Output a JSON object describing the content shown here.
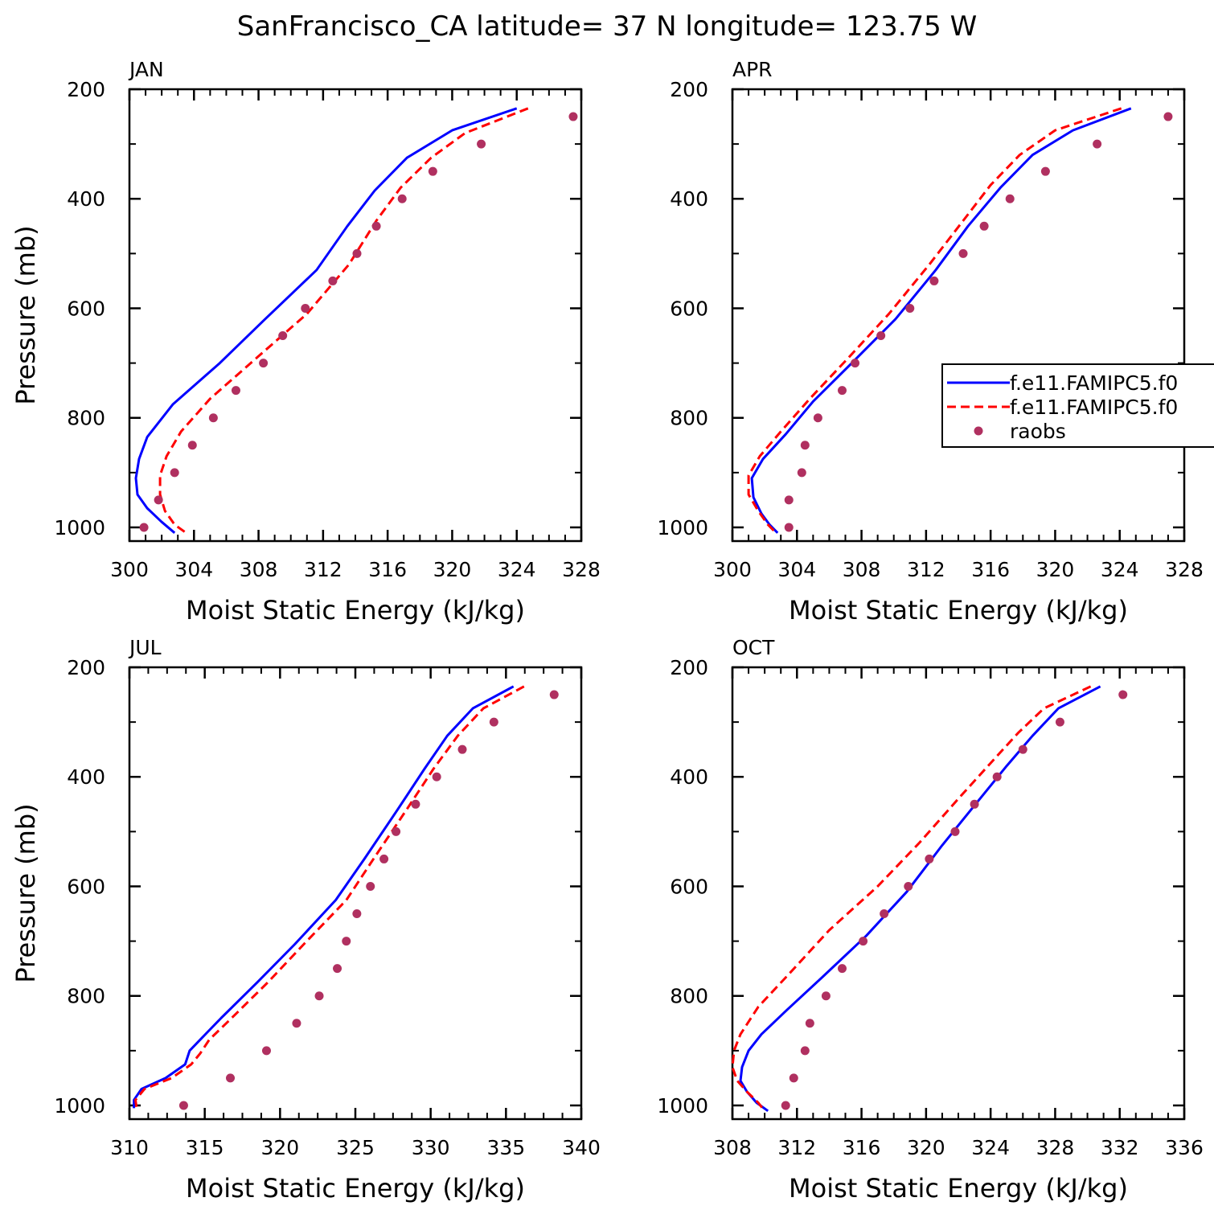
{
  "title": "SanFrancisco_CA  latitude= 37 N longitude= 123.75 W",
  "colors": {
    "model1": "#0000ff",
    "model2": "#ff0000",
    "raobs": "#b03060"
  },
  "legend": {
    "items": [
      {
        "label": "f.e11.FAMIPC5.f0",
        "style": "solid",
        "color": "#0000ff"
      },
      {
        "label": "f.e11.FAMIPC5.f0",
        "style": "dashed",
        "color": "#ff0000"
      },
      {
        "label": "raobs",
        "style": "dot",
        "color": "#b03060"
      }
    ]
  },
  "chart_data": [
    {
      "type": "line",
      "panel": "JAN",
      "title": "JAN",
      "xlabel": "Moist Static Energy (kJ/kg)",
      "ylabel": "Pressure (mb)",
      "xlim": [
        300,
        328
      ],
      "ylim": [
        1025,
        200
      ],
      "xticks": [
        300,
        304,
        308,
        312,
        316,
        320,
        324,
        328
      ],
      "yticks": [
        200,
        400,
        600,
        800,
        1000
      ],
      "series": [
        {
          "name": "f.e11.FAMIPC5.f0",
          "style": "solid",
          "color": "#0000ff",
          "x": [
            324.0,
            320.0,
            317.2,
            315.2,
            313.5,
            311.6,
            308.4,
            305.6,
            302.7,
            301.1,
            300.6,
            300.4,
            300.5,
            301.1,
            302.0,
            302.8
          ],
          "y": [
            235,
            275,
            325,
            385,
            450,
            530,
            620,
            700,
            775,
            835,
            875,
            910,
            940,
            965,
            990,
            1010
          ]
        },
        {
          "name": "f.e11.FAMIPC5.f0",
          "style": "dashed",
          "color": "#ff0000",
          "x": [
            324.7,
            320.8,
            318.7,
            316.8,
            315.3,
            313.6,
            311.0,
            307.9,
            305.0,
            303.2,
            302.3,
            301.9,
            301.9,
            302.2,
            302.8,
            303.6
          ],
          "y": [
            235,
            280,
            325,
            380,
            440,
            520,
            610,
            690,
            765,
            825,
            870,
            905,
            940,
            970,
            995,
            1012
          ]
        },
        {
          "name": "raobs",
          "style": "dot",
          "color": "#b03060",
          "x": [
            327.5,
            321.8,
            318.8,
            316.9,
            315.3,
            314.1,
            312.6,
            310.9,
            309.5,
            308.3,
            306.6,
            305.2,
            303.9,
            302.8,
            301.8,
            300.9
          ],
          "y": [
            250,
            300,
            350,
            400,
            450,
            500,
            550,
            600,
            650,
            700,
            750,
            800,
            850,
            900,
            950,
            1000
          ]
        }
      ]
    },
    {
      "type": "line",
      "panel": "APR",
      "title": "APR",
      "xlabel": "Moist Static Energy (kJ/kg)",
      "ylabel": "",
      "xlim": [
        300,
        328
      ],
      "ylim": [
        1025,
        200
      ],
      "xticks": [
        300,
        304,
        308,
        312,
        316,
        320,
        324,
        328
      ],
      "yticks": [
        200,
        400,
        600,
        800,
        1000
      ],
      "series": [
        {
          "name": "f.e11.FAMIPC5.f0",
          "style": "solid",
          "color": "#0000ff",
          "x": [
            324.7,
            321.1,
            318.6,
            316.6,
            314.6,
            312.6,
            310.1,
            307.4,
            305.0,
            303.3,
            301.9,
            301.2,
            301.3,
            301.8,
            302.3,
            302.8
          ],
          "y": [
            235,
            275,
            320,
            380,
            450,
            530,
            620,
            700,
            770,
            830,
            875,
            910,
            945,
            975,
            995,
            1010
          ]
        },
        {
          "name": "f.e11.FAMIPC5.f0",
          "style": "dashed",
          "color": "#ff0000",
          "x": [
            324.1,
            320.0,
            317.8,
            316.0,
            314.3,
            312.2,
            309.7,
            307.2,
            304.8,
            303.0,
            301.7,
            301.0,
            301.0,
            301.6,
            302.2,
            302.7
          ],
          "y": [
            235,
            275,
            320,
            375,
            440,
            520,
            610,
            690,
            765,
            825,
            870,
            905,
            940,
            970,
            995,
            1010
          ]
        },
        {
          "name": "raobs",
          "style": "dot",
          "color": "#b03060",
          "x": [
            327.0,
            322.6,
            319.4,
            317.2,
            315.6,
            314.3,
            312.5,
            311.0,
            309.2,
            307.6,
            306.8,
            305.3,
            304.5,
            304.3,
            303.5,
            303.5
          ],
          "y": [
            250,
            300,
            350,
            400,
            450,
            500,
            550,
            600,
            650,
            700,
            750,
            800,
            850,
            900,
            950,
            1000
          ]
        }
      ]
    },
    {
      "type": "line",
      "panel": "JUL",
      "title": "JUL",
      "xlabel": "Moist Static Energy (kJ/kg)",
      "ylabel": "Pressure (mb)",
      "xlim": [
        310,
        340
      ],
      "ylim": [
        1025,
        200
      ],
      "xticks": [
        310,
        315,
        320,
        325,
        330,
        335,
        340
      ],
      "yticks": [
        200,
        400,
        600,
        800,
        1000
      ],
      "series": [
        {
          "name": "f.e11.FAMIPC5.f0",
          "style": "solid",
          "color": "#0000ff",
          "x": [
            335.5,
            332.8,
            331.1,
            329.6,
            327.8,
            325.6,
            323.7,
            321.0,
            318.5,
            316.1,
            314.7,
            314.0,
            313.7,
            312.4,
            310.8,
            310.3,
            310.3
          ],
          "y": [
            235,
            275,
            325,
            385,
            460,
            550,
            625,
            705,
            775,
            840,
            880,
            900,
            925,
            950,
            970,
            990,
            1005
          ]
        },
        {
          "name": "f.e11.FAMIPC5.f0",
          "style": "dashed",
          "color": "#ff0000",
          "x": [
            336.2,
            333.5,
            331.8,
            330.2,
            328.4,
            326.2,
            324.4,
            321.6,
            319.2,
            316.8,
            315.3,
            314.7,
            314.1,
            312.8,
            311.0,
            310.4,
            310.5
          ],
          "y": [
            235,
            275,
            325,
            385,
            460,
            550,
            625,
            705,
            775,
            840,
            880,
            905,
            925,
            950,
            970,
            990,
            1010
          ]
        },
        {
          "name": "raobs",
          "style": "dot",
          "color": "#b03060",
          "x": [
            338.2,
            334.2,
            332.1,
            330.4,
            329.0,
            327.7,
            326.9,
            326.0,
            325.1,
            324.4,
            323.8,
            322.6,
            321.1,
            319.1,
            316.7,
            313.6
          ],
          "y": [
            250,
            300,
            350,
            400,
            450,
            500,
            550,
            600,
            650,
            700,
            750,
            800,
            850,
            900,
            950,
            1000
          ]
        }
      ]
    },
    {
      "type": "line",
      "panel": "OCT",
      "title": "OCT",
      "xlabel": "Moist Static Energy (kJ/kg)",
      "ylabel": "",
      "xlim": [
        308,
        336
      ],
      "ylim": [
        1025,
        200
      ],
      "xticks": [
        308,
        312,
        316,
        320,
        324,
        328,
        332,
        336
      ],
      "yticks": [
        200,
        400,
        600,
        800,
        1000
      ],
      "series": [
        {
          "name": "f.e11.FAMIPC5.f0",
          "style": "solid",
          "color": "#0000ff",
          "x": [
            330.8,
            328.2,
            326.6,
            325.0,
            323.2,
            321.0,
            318.8,
            316.3,
            313.6,
            311.4,
            309.8,
            309.0,
            308.6,
            308.5,
            308.9,
            309.5,
            310.2
          ],
          "y": [
            235,
            275,
            325,
            380,
            445,
            525,
            610,
            690,
            765,
            825,
            870,
            900,
            930,
            955,
            975,
            995,
            1010
          ]
        },
        {
          "name": "f.e11.FAMIPC5.f0",
          "style": "dashed",
          "color": "#ff0000",
          "x": [
            330.2,
            327.3,
            325.7,
            324.0,
            322.0,
            319.6,
            317.0,
            314.0,
            311.5,
            309.6,
            308.5,
            308.1,
            308.0,
            308.3,
            308.9,
            309.6,
            310.0
          ],
          "y": [
            235,
            275,
            320,
            375,
            440,
            520,
            600,
            680,
            760,
            820,
            870,
            900,
            930,
            955,
            975,
            995,
            1010
          ]
        },
        {
          "name": "raobs",
          "style": "dot",
          "color": "#b03060",
          "x": [
            332.2,
            328.3,
            326.0,
            324.4,
            323.0,
            321.8,
            320.2,
            318.9,
            317.4,
            316.1,
            314.8,
            313.8,
            312.8,
            312.5,
            311.8,
            311.3
          ],
          "y": [
            250,
            300,
            350,
            400,
            450,
            500,
            550,
            600,
            650,
            700,
            750,
            800,
            850,
            900,
            950,
            1000
          ]
        }
      ]
    }
  ]
}
